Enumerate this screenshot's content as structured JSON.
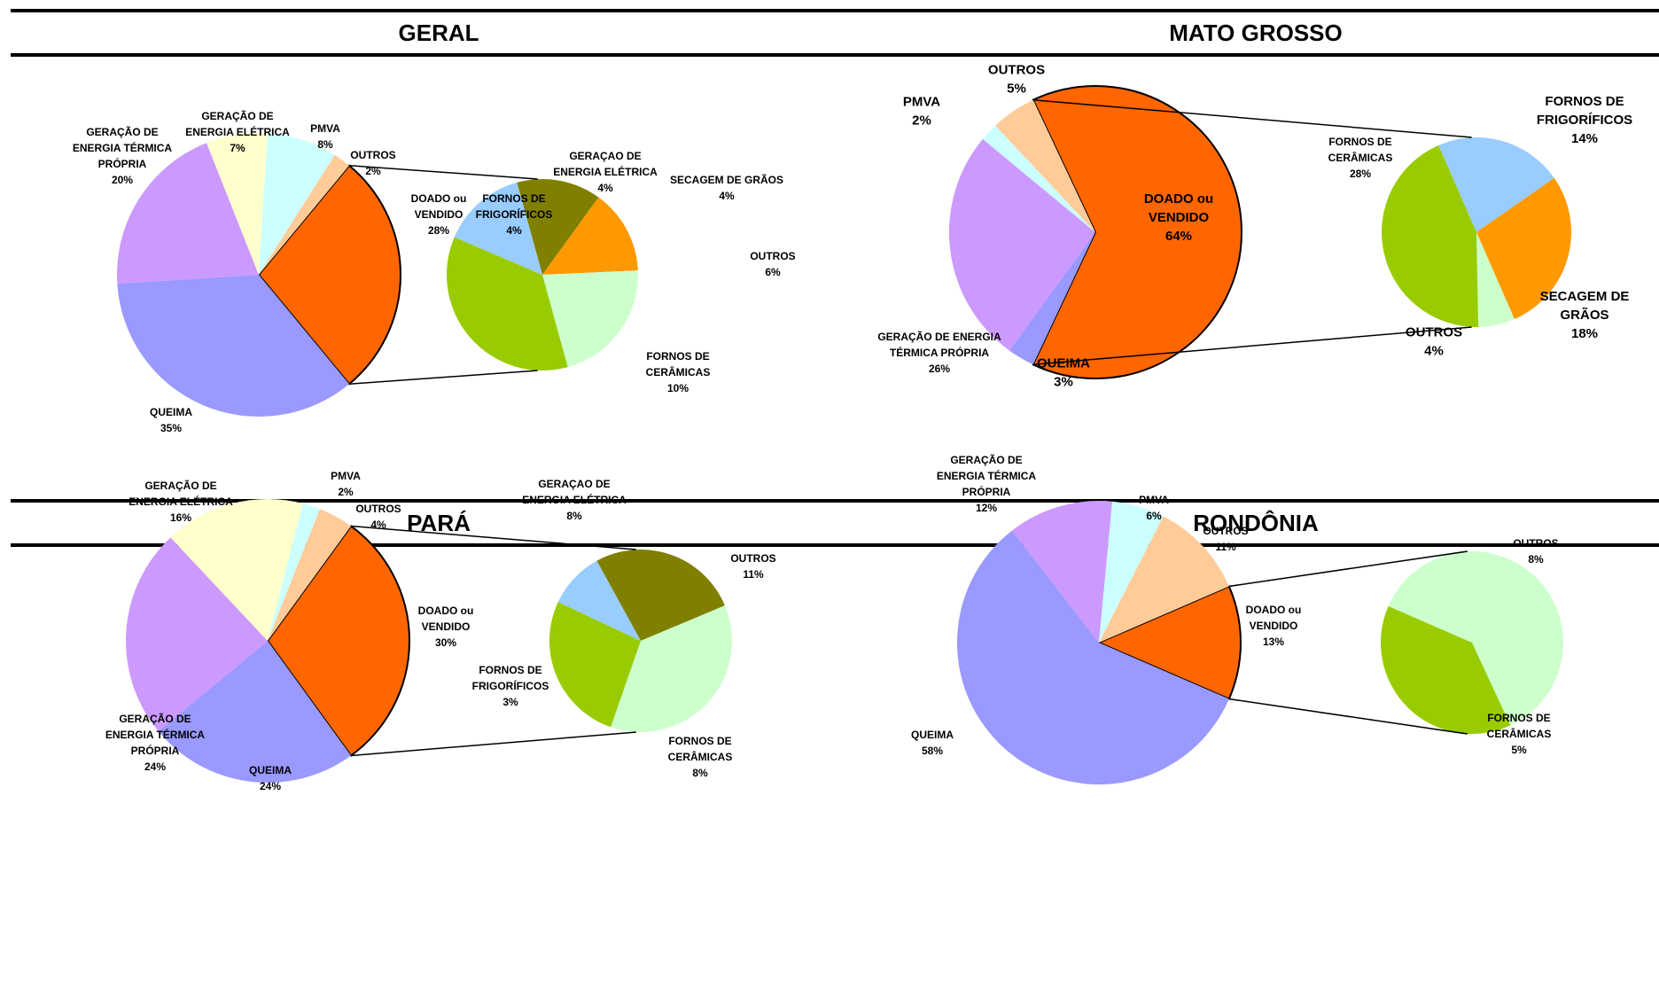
{
  "colors": {
    "doado": "#FF6600",
    "queima": "#9999FF",
    "gen_termica": "#CC99FF",
    "gen_eletrica": "#FFFFCC",
    "pmva": "#CCFFFF",
    "outros_main": "#FFCC99",
    "sub_eletrica": "#808000",
    "sub_secagem": "#FF9900",
    "sub_outros": "#CCFFCC",
    "sub_ceramicas": "#99CC00",
    "sub_frigorificos": "#99CCFF"
  },
  "chart_data": [
    {
      "type": "pie",
      "title": "GERAL",
      "main": [
        {
          "label": [
            "DOADO ou",
            "VENDIDO"
          ],
          "pct": "28%",
          "value": 28,
          "color": "doado"
        },
        {
          "label": [
            "QUEIMA"
          ],
          "pct": "35%",
          "value": 35,
          "color": "queima"
        },
        {
          "label": [
            "GERAÇÃO DE",
            "ENERGIA TÉRMICA",
            "PRÓPRIA"
          ],
          "pct": "20%",
          "value": 20,
          "color": "gen_termica"
        },
        {
          "label": [
            "GERAÇÃO DE",
            "ENERGIA ELÉTRICA"
          ],
          "pct": "7%",
          "value": 7,
          "color": "gen_eletrica"
        },
        {
          "label": [
            "PMVA"
          ],
          "pct": "8%",
          "value": 8,
          "color": "pmva"
        },
        {
          "label": [
            "OUTROS"
          ],
          "pct": "2%",
          "value": 2,
          "color": "outros_main"
        }
      ],
      "breakdown": [
        {
          "label": [
            "GERAÇAO DE",
            "ENERGIA ELÉTRICA"
          ],
          "pct": "4%",
          "value": 4,
          "color": "sub_eletrica"
        },
        {
          "label": [
            "SECAGEM DE GRÃOS"
          ],
          "pct": "4%",
          "value": 4,
          "color": "sub_secagem"
        },
        {
          "label": [
            "OUTROS"
          ],
          "pct": "6%",
          "value": 6,
          "color": "sub_outros"
        },
        {
          "label": [
            "FORNOS DE",
            "CERÂMICAS"
          ],
          "pct": "10%",
          "value": 10,
          "color": "sub_ceramicas"
        },
        {
          "label": [
            "FORNOS DE",
            "FRIGORÍFICOS"
          ],
          "pct": "4%",
          "value": 4,
          "color": "sub_frigorificos"
        }
      ]
    },
    {
      "type": "pie",
      "title": "MATO GROSSO",
      "main": [
        {
          "label": [
            "DOADO ou",
            "VENDIDO"
          ],
          "pct": "64%",
          "value": 64,
          "color": "doado"
        },
        {
          "label": [
            "QUEIMA"
          ],
          "pct": "3%",
          "value": 3,
          "color": "queima"
        },
        {
          "label": [
            "GERAÇÃO DE ENERGIA",
            "TÉRMICA PRÓPRIA"
          ],
          "pct": "26%",
          "value": 26,
          "color": "gen_termica"
        },
        {
          "label": [
            "PMVA"
          ],
          "pct": "2%",
          "value": 2,
          "color": "pmva"
        },
        {
          "label": [
            "OUTROS"
          ],
          "pct": "5%",
          "value": 5,
          "color": "outros_main"
        }
      ],
      "breakdown": [
        {
          "label": [
            "FORNOS DE",
            "FRIGORÍFICOS"
          ],
          "pct": "14%",
          "value": 14,
          "color": "sub_frigorificos"
        },
        {
          "label": [
            "SECAGEM DE",
            "GRÃOS"
          ],
          "pct": "18%",
          "value": 18,
          "color": "sub_secagem"
        },
        {
          "label": [
            "OUTROS"
          ],
          "pct": "4%",
          "value": 4,
          "color": "sub_outros"
        },
        {
          "label": [
            "FORNOS DE",
            "CERÂMICAS"
          ],
          "pct": "28%",
          "value": 28,
          "color": "sub_ceramicas"
        }
      ]
    },
    {
      "type": "pie",
      "title": "PARÁ",
      "main": [
        {
          "label": [
            "DOADO ou",
            "VENDIDO"
          ],
          "pct": "30%",
          "value": 30,
          "color": "doado"
        },
        {
          "label": [
            "QUEIMA"
          ],
          "pct": "24%",
          "value": 24,
          "color": "queima"
        },
        {
          "label": [
            "GERAÇÃO DE",
            "ENERGIA TÉRMICA",
            "PRÓPRIA"
          ],
          "pct": "24%",
          "value": 24,
          "color": "gen_termica"
        },
        {
          "label": [
            "GERAÇÃO DE",
            "ENERGIA ELÉTRICA"
          ],
          "pct": "16%",
          "value": 16,
          "color": "gen_eletrica"
        },
        {
          "label": [
            "PMVA"
          ],
          "pct": "2%",
          "value": 2,
          "color": "pmva"
        },
        {
          "label": [
            "OUTROS"
          ],
          "pct": "4%",
          "value": 4,
          "color": "outros_main"
        }
      ],
      "breakdown": [
        {
          "label": [
            "GERAÇAO DE",
            "ENERGIA ELÉTRICA"
          ],
          "pct": "8%",
          "value": 8,
          "color": "sub_eletrica"
        },
        {
          "label": [
            "OUTROS"
          ],
          "pct": "11%",
          "value": 11,
          "color": "sub_outros"
        },
        {
          "label": [
            "FORNOS DE",
            "CERÂMICAS"
          ],
          "pct": "8%",
          "value": 8,
          "color": "sub_ceramicas"
        },
        {
          "label": [
            "FORNOS DE",
            "FRIGORÍFICOS"
          ],
          "pct": "3%",
          "value": 3,
          "color": "sub_frigorificos"
        }
      ]
    },
    {
      "type": "pie",
      "title": "RONDÔNIA",
      "main": [
        {
          "label": [
            "DOADO ou",
            "VENDIDO"
          ],
          "pct": "13%",
          "value": 13,
          "color": "doado"
        },
        {
          "label": [
            "QUEIMA"
          ],
          "pct": "58%",
          "value": 58,
          "color": "queima"
        },
        {
          "label": [
            "GERAÇÃO DE",
            "ENERGIA TÉRMICA",
            "PRÓPRIA"
          ],
          "pct": "12%",
          "value": 12,
          "color": "gen_termica"
        },
        {
          "label": [
            "PMVA"
          ],
          "pct": "6%",
          "value": 6,
          "color": "pmva"
        },
        {
          "label": [
            "OUTROS"
          ],
          "pct": "11%",
          "value": 11,
          "color": "outros_main"
        }
      ],
      "breakdown": [
        {
          "label": [
            "OUTROS"
          ],
          "pct": "8%",
          "value": 8,
          "color": "sub_outros"
        },
        {
          "label": [
            "FORNOS DE",
            "CERÂMICAS"
          ],
          "pct": "5%",
          "value": 5,
          "color": "sub_ceramicas"
        }
      ]
    }
  ]
}
